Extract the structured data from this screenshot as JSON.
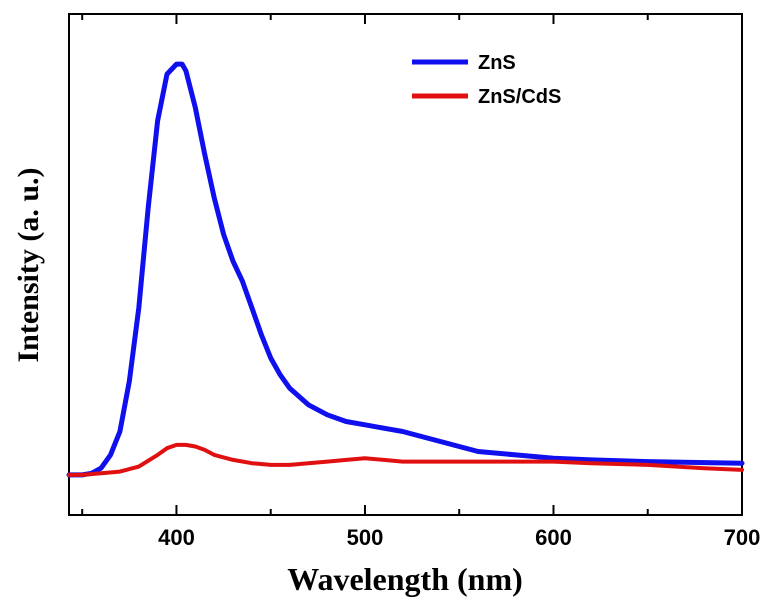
{
  "chart_data": {
    "type": "line",
    "xlabel": "Wavelength (nm)",
    "ylabel": "Intensity (a. u.)",
    "xlim": [
      343,
      700
    ],
    "ylim": [
      -12,
      138
    ],
    "xticks": [
      400,
      500,
      600,
      700
    ],
    "yticks_shown": false,
    "grid": false,
    "legend_position": "top-right",
    "series": [
      {
        "name": "ZnS",
        "color": "#1010ee",
        "x": [
          343,
          350,
          355,
          360,
          365,
          370,
          375,
          380,
          385,
          390,
          395,
          400,
          403,
          405,
          410,
          415,
          420,
          425,
          430,
          435,
          440,
          445,
          450,
          455,
          460,
          470,
          480,
          490,
          500,
          510,
          520,
          530,
          540,
          550,
          560,
          580,
          600,
          620,
          650,
          700
        ],
        "y": [
          0,
          0,
          0.5,
          2,
          6,
          13,
          28,
          50,
          80,
          106,
          120,
          123,
          123,
          121,
          110,
          96,
          83,
          72,
          64,
          58,
          50,
          42,
          35,
          30,
          26,
          21,
          18,
          16,
          15,
          14,
          13,
          11.5,
          10,
          8.5,
          7,
          6,
          5,
          4.5,
          4,
          3.5
        ]
      },
      {
        "name": "ZnS/CdS",
        "color": "#e01010",
        "x": [
          343,
          350,
          360,
          370,
          380,
          390,
          395,
          400,
          405,
          410,
          415,
          420,
          430,
          440,
          450,
          460,
          470,
          480,
          490,
          500,
          510,
          520,
          540,
          560,
          580,
          600,
          620,
          650,
          680,
          700
        ],
        "y": [
          0,
          0,
          0.5,
          1,
          2.5,
          6,
          8,
          9,
          9,
          8.5,
          7.5,
          6,
          4.5,
          3.5,
          3,
          3,
          3.5,
          4,
          4.5,
          5,
          4.5,
          4,
          4,
          4,
          4,
          4,
          3.5,
          3,
          2,
          1.5
        ]
      }
    ]
  }
}
